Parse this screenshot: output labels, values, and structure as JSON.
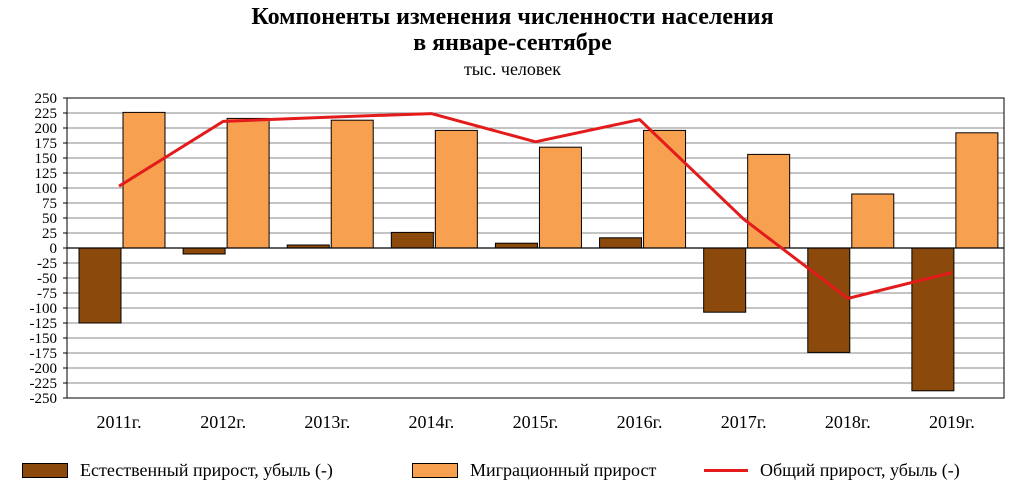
{
  "chart_data": {
    "type": "bar",
    "title_line1": "Компоненты изменения численности населения",
    "title_line2": "в январе-сентябре",
    "subtitle": "тыс. человек",
    "categories": [
      "2011г.",
      "2012г.",
      "2013г.",
      "2014г.",
      "2015г.",
      "2016г.",
      "2017г.",
      "2018г.",
      "2019г."
    ],
    "ylim": [
      -250,
      250
    ],
    "y_ticks": [
      250,
      225,
      200,
      175,
      150,
      125,
      100,
      75,
      50,
      25,
      0,
      -25,
      -50,
      -75,
      -100,
      -125,
      -150,
      -175,
      -200,
      -225,
      -250
    ],
    "grid": true,
    "legend_position": "bottom",
    "series": [
      {
        "name": "Естественный прирост, убыль (-)",
        "type": "bar",
        "color": "#8B4A0B",
        "values": [
          -125,
          -10,
          5,
          26,
          8,
          17,
          -107,
          -174,
          -238
        ]
      },
      {
        "name": "Миграционный прирост",
        "type": "bar",
        "color": "#F7A04F",
        "values": [
          226,
          216,
          213,
          196,
          168,
          196,
          156,
          90,
          192
        ]
      },
      {
        "name": "Общий прирост, убыль (-)",
        "type": "line",
        "color": "#E31B1B",
        "values": [
          103,
          211,
          218,
          224,
          177,
          214,
          48,
          -84,
          -41
        ]
      }
    ]
  }
}
